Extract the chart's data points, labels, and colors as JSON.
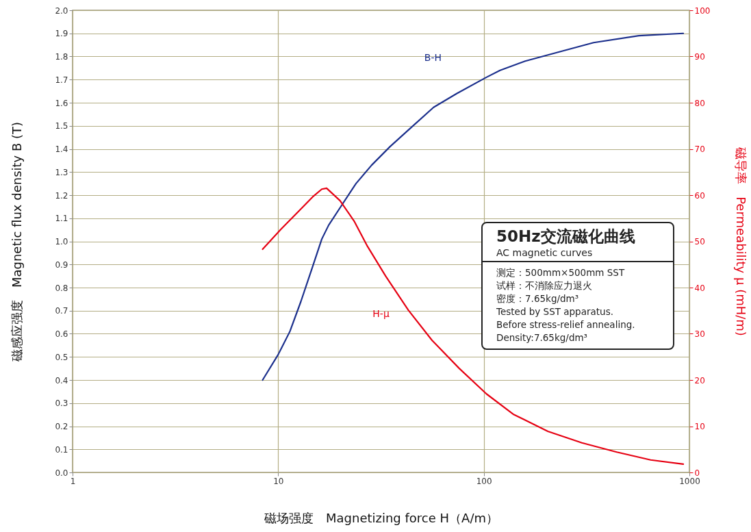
{
  "chart_data": {
    "type": "line",
    "xlabel": "磁场强度　Magnetizing force H（A/m）",
    "ylabel": "磁感应强度　Magnetic flux density B (T)",
    "y2label": "磁导率　Permeability μ (mH/m)",
    "log": "x",
    "grid": true,
    "legend": false,
    "marker": "none",
    "line_style": "solid",
    "xlim": [
      1,
      1000
    ],
    "xticks": [
      1,
      10,
      100,
      1000
    ],
    "ylim": [
      0,
      2
    ],
    "yticks": [
      {
        "value": 0,
        "label": "0.0"
      },
      0.1,
      0.2,
      0.3,
      0.4,
      0.5,
      0.6,
      0.7,
      0.8,
      0.9,
      {
        "value": 1,
        "label": "1.0"
      },
      1.1,
      1.2,
      1.3,
      1.4,
      1.5,
      1.6,
      1.7,
      1.8,
      1.9,
      {
        "value": 2,
        "label": "2.0"
      }
    ],
    "y2lim": [
      0,
      100
    ],
    "y2ticks": [
      0,
      10,
      20,
      30,
      40,
      50,
      60,
      70,
      80,
      90,
      100
    ],
    "series": [
      {
        "name": "B-H",
        "color": "#1b2f8c",
        "x": [
          8.4,
          10.0,
          11.4,
          12.9,
          14.7,
          16.3,
          17.6,
          20.5,
          23.9,
          28.5,
          35,
          44,
          57,
          74,
          103,
          120,
          159,
          233,
          342,
          568,
          934
        ],
        "values": [
          0.4,
          0.51,
          0.61,
          0.74,
          0.89,
          1.01,
          1.07,
          1.16,
          1.25,
          1.33,
          1.41,
          1.49,
          1.58,
          1.64,
          1.71,
          1.74,
          1.78,
          1.82,
          1.86,
          1.89,
          1.9
        ]
      },
      {
        "name": "H-μ",
        "color": "#e60012",
        "axis": "y2",
        "x": [
          8.4,
          10.3,
          12.7,
          14.7,
          16.3,
          17.2,
          20.0,
          23.4,
          27.2,
          33.3,
          43,
          56,
          76,
          103,
          139,
          205,
          300,
          443,
          648,
          934
        ],
        "values": [
          48.3,
          52.6,
          56.7,
          59.6,
          61.3,
          61.5,
          58.8,
          54.4,
          48.9,
          42.5,
          35.1,
          28.6,
          22.5,
          17.0,
          12.6,
          8.9,
          6.4,
          4.4,
          2.7,
          1.8
        ]
      }
    ],
    "annotations": [
      "50Hz交流磁化曲线",
      "AC magnetic curves",
      "测定：500mm×500mm SST",
      "试样：不消除应力退火",
      "密度：7.65kg/dm³",
      "Tested by SST apparatus.",
      "Before stress-relief annealing.",
      "Density:7.65kg/dm³"
    ]
  }
}
